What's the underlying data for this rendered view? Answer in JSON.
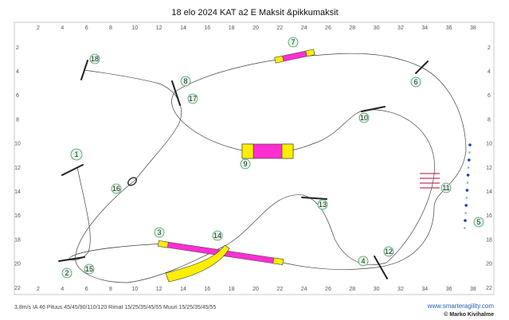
{
  "header": {
    "title": "18 elo 2024 KAT a2 E Maksit &pikkumaksit"
  },
  "grid": {
    "x_labels": [
      "2",
      "4",
      "6",
      "8",
      "10",
      "12",
      "14",
      "16",
      "18",
      "20",
      "22",
      "24",
      "26",
      "28",
      "30",
      "32",
      "34",
      "36",
      "38"
    ],
    "y_labels": [
      "2",
      "4",
      "6",
      "8",
      "10",
      "12",
      "14",
      "16",
      "18",
      "20",
      "22"
    ]
  },
  "obstacles": [
    {
      "label": "1"
    },
    {
      "label": "2"
    },
    {
      "label": "3"
    },
    {
      "label": "4"
    },
    {
      "label": "5"
    },
    {
      "label": "6"
    },
    {
      "label": "7"
    },
    {
      "label": "8"
    },
    {
      "label": "9"
    },
    {
      "label": "10"
    },
    {
      "label": "11"
    },
    {
      "label": "12"
    },
    {
      "label": "13"
    },
    {
      "label": "14"
    },
    {
      "label": "15"
    },
    {
      "label": "16"
    },
    {
      "label": "17"
    },
    {
      "label": "18"
    }
  ],
  "footer": {
    "info": "3.8m/s IA 46 Pituus 45/45/90/110/120 Rimat 15/25/35/45/55 Muuri 15/25/35/45/55",
    "website": "www.smarteragility.com",
    "author": "© Marko Kivihalme"
  }
}
